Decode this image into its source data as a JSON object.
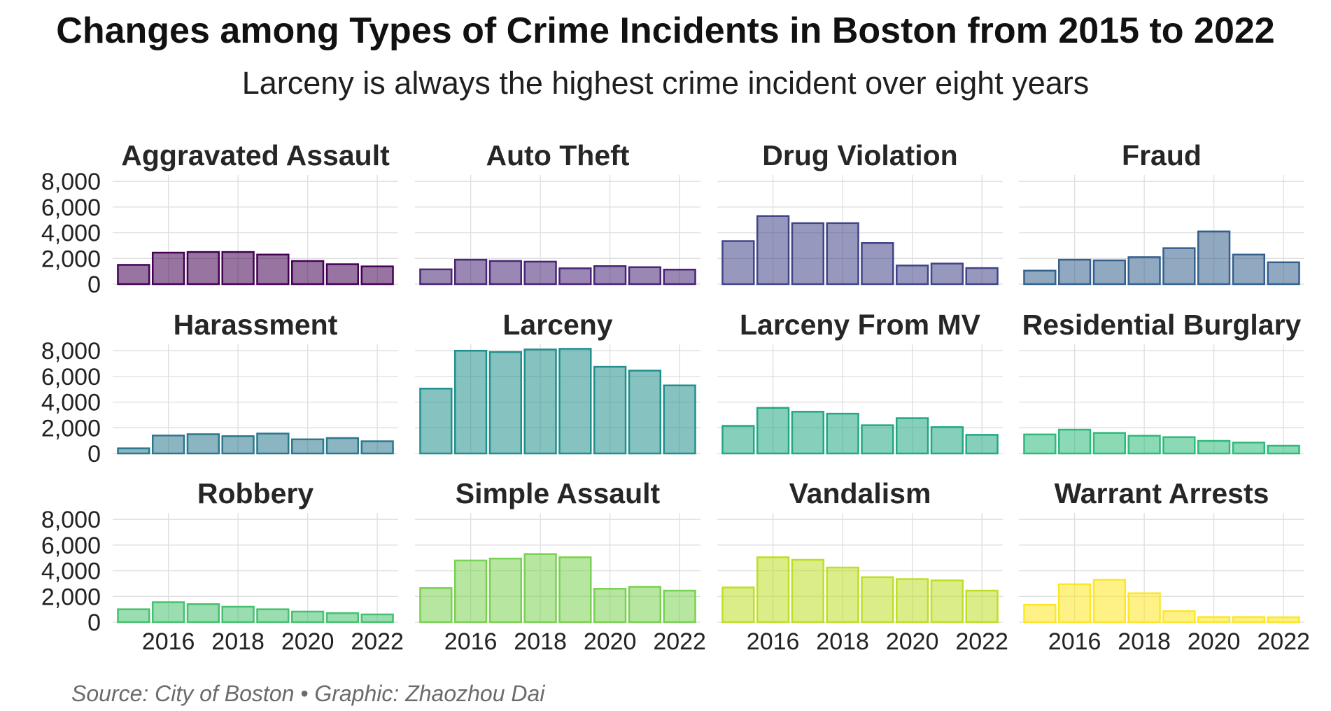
{
  "title": "Changes among Types of Crime Incidents in Boston from 2015 to 2022",
  "subtitle": "Larceny is always the highest crime incident over eight years",
  "caption": "Source: City of Boston • Graphic: Zhaozhou Dai",
  "chart_data": {
    "type": "bar",
    "layout": "small multiples, 3 rows x 4 columns, shared axes",
    "x": [
      2015,
      2016,
      2017,
      2018,
      2019,
      2020,
      2021,
      2022
    ],
    "x_ticks": [
      2016,
      2018,
      2020,
      2022
    ],
    "x_tick_labels": [
      "2016",
      "2018",
      "2020",
      "2022"
    ],
    "ylim": [
      0,
      8500
    ],
    "y_ticks": [
      0,
      2000,
      4000,
      6000,
      8000
    ],
    "y_tick_labels": [
      "0",
      "2,000",
      "4,000",
      "6,000",
      "8,000"
    ],
    "grid": true,
    "series": [
      {
        "name": "Aggravated Assault",
        "color": "#440154",
        "values": [
          1500,
          2450,
          2500,
          2500,
          2300,
          1800,
          1550,
          1380
        ]
      },
      {
        "name": "Auto Theft",
        "color": "#482576",
        "values": [
          1150,
          1900,
          1800,
          1750,
          1230,
          1400,
          1320,
          1130
        ]
      },
      {
        "name": "Drug Violation",
        "color": "#414487",
        "values": [
          3350,
          5300,
          4750,
          4750,
          3200,
          1450,
          1600,
          1250
        ]
      },
      {
        "name": "Fraud",
        "color": "#35608d",
        "values": [
          1050,
          1900,
          1850,
          2100,
          2800,
          4100,
          2300,
          1700
        ]
      },
      {
        "name": "Harassment",
        "color": "#2a788e",
        "values": [
          400,
          1400,
          1500,
          1350,
          1550,
          1100,
          1200,
          950
        ]
      },
      {
        "name": "Larceny",
        "color": "#21908d",
        "values": [
          5050,
          8000,
          7900,
          8100,
          8150,
          6750,
          6450,
          5300
        ]
      },
      {
        "name": "Larceny From MV",
        "color": "#22a884",
        "values": [
          2150,
          3550,
          3250,
          3100,
          2200,
          2750,
          2050,
          1450
        ]
      },
      {
        "name": "Residential Burglary",
        "color": "#2dba7a",
        "values": [
          1480,
          1850,
          1600,
          1380,
          1270,
          980,
          850,
          600
        ]
      },
      {
        "name": "Robbery",
        "color": "#45c16f",
        "values": [
          1000,
          1550,
          1400,
          1200,
          1000,
          820,
          700,
          600
        ]
      },
      {
        "name": "Simple Assault",
        "color": "#7ad151",
        "values": [
          2650,
          4800,
          4950,
          5300,
          5050,
          2600,
          2750,
          2450
        ]
      },
      {
        "name": "Vandalism",
        "color": "#bddf26",
        "values": [
          2700,
          5050,
          4850,
          4250,
          3500,
          3350,
          3250,
          2450
        ]
      },
      {
        "name": "Warrant Arrests",
        "color": "#fde725",
        "values": [
          1350,
          2950,
          3300,
          2250,
          850,
          400,
          400,
          380
        ]
      }
    ]
  }
}
